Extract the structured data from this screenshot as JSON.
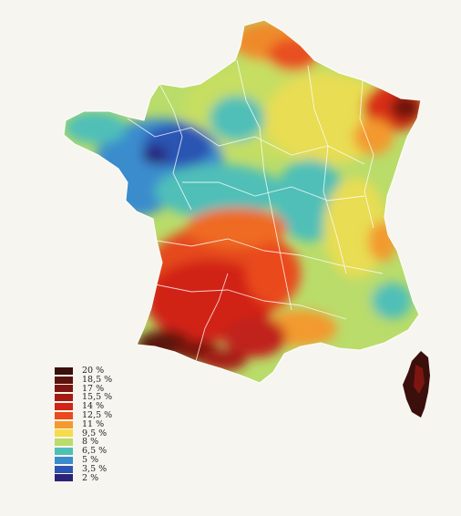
{
  "map": {
    "legend": [
      {
        "label": "20 %",
        "color": "#3b0f0b"
      },
      {
        "label": "18,5 %",
        "color": "#5a120d"
      },
      {
        "label": "17 %",
        "color": "#7d1610"
      },
      {
        "label": "15,5 %",
        "color": "#a51b12"
      },
      {
        "label": "14 %",
        "color": "#d12416"
      },
      {
        "label": "12,5 %",
        "color": "#ea4a1c"
      },
      {
        "label": "11 %",
        "color": "#f39a2e"
      },
      {
        "label": "9,5 %",
        "color": "#f5dc48"
      },
      {
        "label": "8 %",
        "color": "#b9dc6a"
      },
      {
        "label": "6,5 %",
        "color": "#4fbfb8"
      },
      {
        "label": "5 %",
        "color": "#3a8ccd"
      },
      {
        "label": "3,5 %",
        "color": "#2c55b3"
      },
      {
        "label": "2 %",
        "color": "#2a2478"
      }
    ]
  }
}
